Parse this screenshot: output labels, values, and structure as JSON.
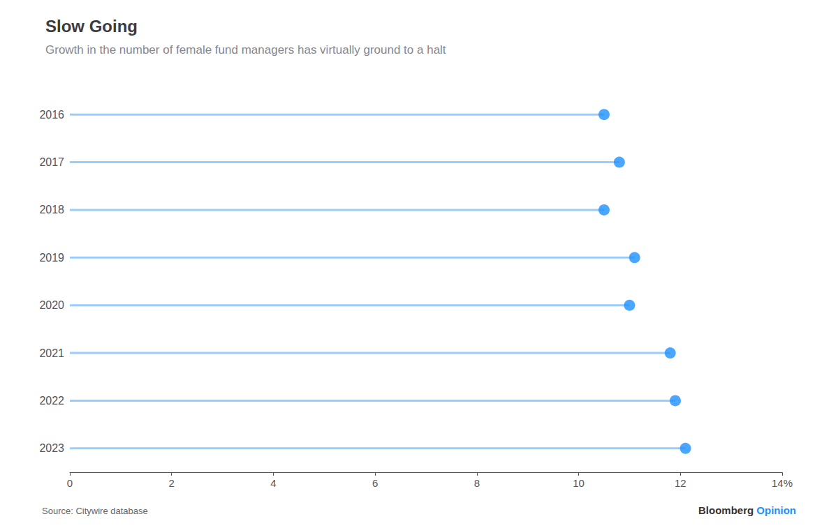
{
  "chart_data": {
    "type": "lollipop",
    "title": "Slow Going",
    "subtitle": "Growth in the number of female fund managers has virtually ground to a halt",
    "orientation": "horizontal",
    "categories": [
      "2016",
      "2017",
      "2018",
      "2019",
      "2020",
      "2021",
      "2022",
      "2023"
    ],
    "values": [
      10.5,
      10.8,
      10.5,
      11.1,
      11.0,
      11.8,
      11.9,
      12.1
    ],
    "color": "#1E90FF",
    "xlim": [
      0,
      14
    ],
    "xticks": [
      0,
      2,
      4,
      6,
      8,
      10,
      12,
      {
        "value": 14,
        "label": "14%"
      }
    ],
    "grid": false,
    "annotations": [
      {
        "text": "Source: Citywire database"
      },
      {
        "text": "Bloomberg"
      },
      {
        "text": "Opinion",
        "color": "#1E90FF"
      }
    ]
  }
}
